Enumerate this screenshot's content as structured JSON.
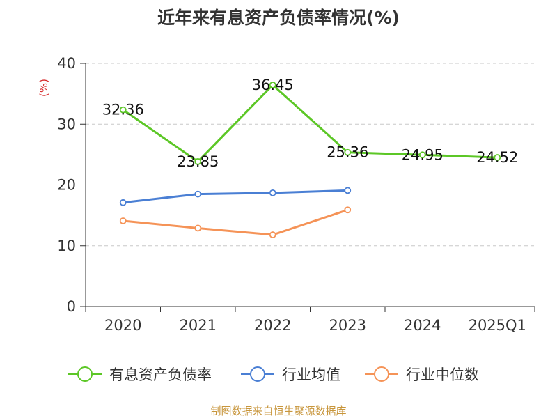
{
  "title": "近年来有息资产负债率情况(%)",
  "source": "制图数据来自恒生聚源数据库",
  "chart_data": {
    "type": "line",
    "title": "近年来有息资产负债率情况(%)",
    "xlabel": "",
    "ylabel": "(%)",
    "ylim": [
      0,
      40
    ],
    "yticks": [
      "0",
      "10",
      "20",
      "30",
      "40"
    ],
    "categories": [
      "2020",
      "2021",
      "2022",
      "2023",
      "2024",
      "2025Q1"
    ],
    "grid": "horizontal-dashed",
    "legend_position": "bottom",
    "series": [
      {
        "name": "有息资产负债率",
        "color": "#5cc726",
        "values": [
          32.36,
          23.85,
          36.45,
          25.36,
          24.95,
          24.52
        ],
        "labels": [
          "32.36",
          "23.85",
          "36.45",
          "25.36",
          "24.95",
          "24.52"
        ]
      },
      {
        "name": "行业均值",
        "color": "#4a7fd4",
        "values": [
          17.1,
          18.5,
          18.7,
          19.1,
          null,
          null
        ]
      },
      {
        "name": "行业中位数",
        "color": "#f59357",
        "values": [
          14.1,
          12.9,
          11.8,
          15.9,
          null,
          null
        ]
      }
    ]
  }
}
